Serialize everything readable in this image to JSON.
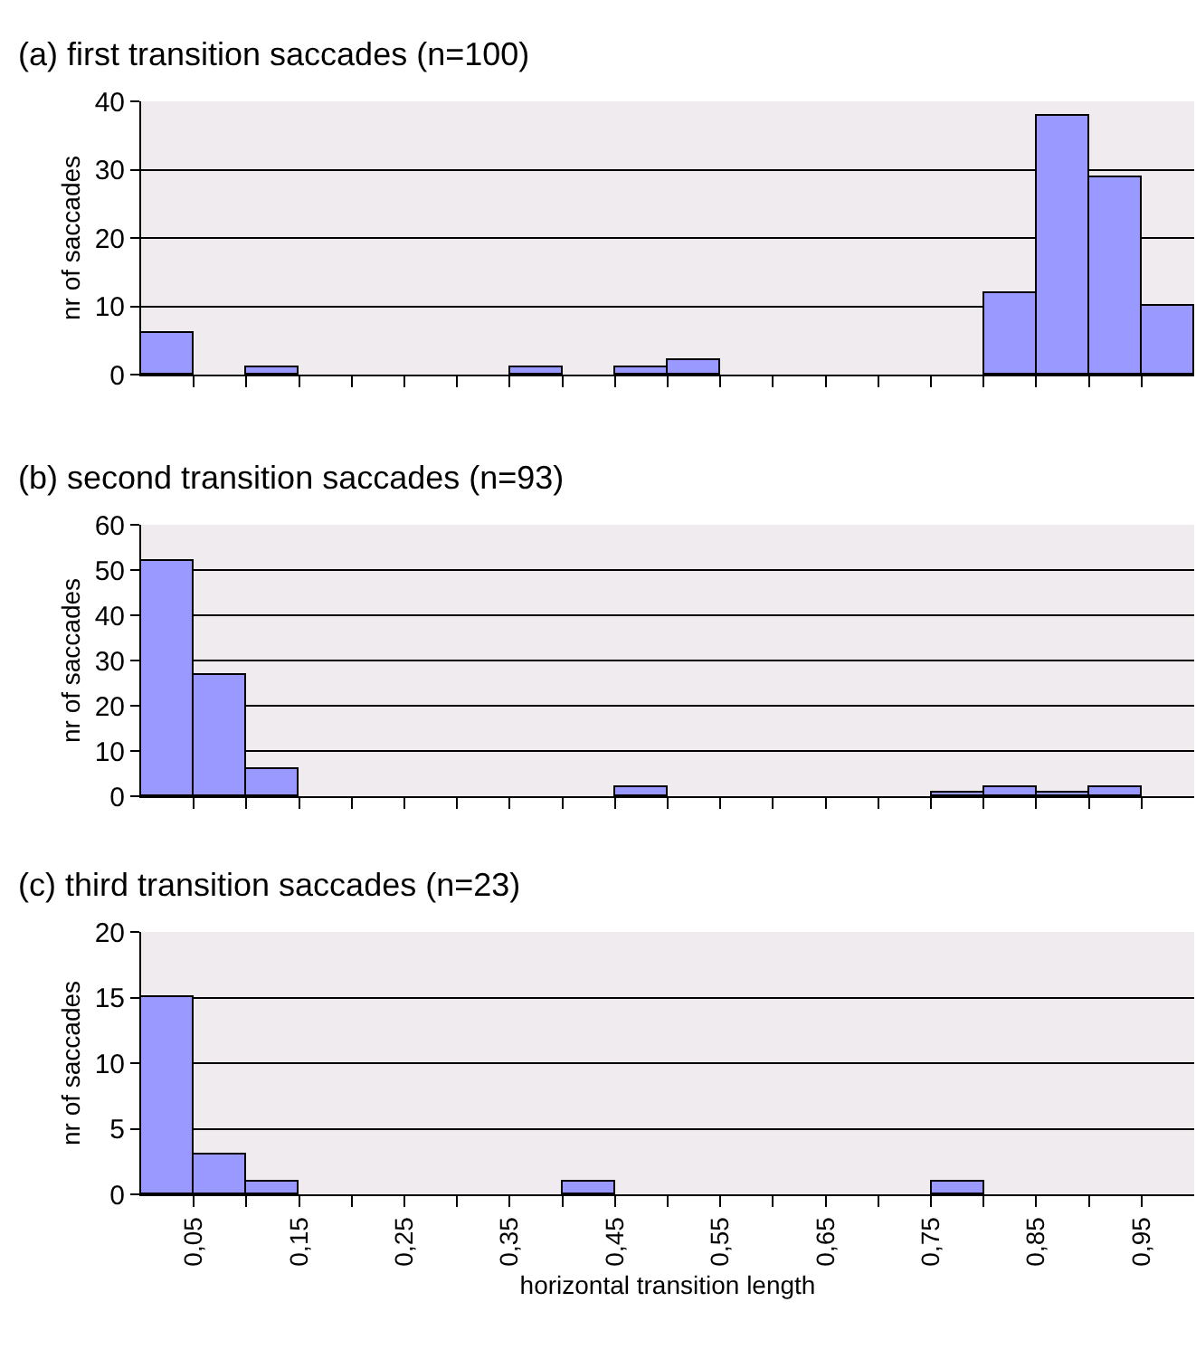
{
  "chart_data": [
    {
      "type": "histogram",
      "title": "(a) first transition saccades (n=100)",
      "ylabel": "nr of saccades",
      "color": "#9999ff",
      "bins": [
        0,
        0.05,
        0.1,
        0.15,
        0.2,
        0.25,
        0.3,
        0.35,
        0.4,
        0.45,
        0.5,
        0.55,
        0.6,
        0.65,
        0.7,
        0.75,
        0.8,
        0.85,
        0.9,
        0.95,
        1
      ],
      "values": [
        6,
        0,
        1,
        0,
        0,
        0,
        0,
        1,
        0,
        1,
        2,
        0,
        0,
        0,
        0,
        0,
        12,
        38,
        29,
        10
      ],
      "xlim": [
        0,
        1
      ],
      "ylim": [
        0,
        40
      ],
      "yticks": [
        0,
        10,
        20,
        30,
        40
      ],
      "xticks": [
        {
          "value": 0.05,
          "label": null
        },
        {
          "value": 0.1,
          "label": null
        },
        {
          "value": 0.15,
          "label": null
        },
        {
          "value": 0.2,
          "label": null
        },
        {
          "value": 0.25,
          "label": null
        },
        {
          "value": 0.3,
          "label": null
        },
        {
          "value": 0.35,
          "label": null
        },
        {
          "value": 0.4,
          "label": null
        },
        {
          "value": 0.45,
          "label": null
        },
        {
          "value": 0.5,
          "label": null
        },
        {
          "value": 0.55,
          "label": null
        },
        {
          "value": 0.6,
          "label": null
        },
        {
          "value": 0.65,
          "label": null
        },
        {
          "value": 0.7,
          "label": null
        },
        {
          "value": 0.75,
          "label": null
        },
        {
          "value": 0.8,
          "label": null
        },
        {
          "value": 0.85,
          "label": null
        },
        {
          "value": 0.9,
          "label": null
        },
        {
          "value": 0.95,
          "label": null
        }
      ],
      "tick_labels": "y",
      "grid": "y"
    },
    {
      "type": "histogram",
      "title": "(b) second transition saccades (n=93)",
      "ylabel": "nr of saccades",
      "color": "#9999ff",
      "bins": [
        0,
        0.05,
        0.1,
        0.15,
        0.2,
        0.25,
        0.3,
        0.35,
        0.4,
        0.45,
        0.5,
        0.55,
        0.6,
        0.65,
        0.7,
        0.75,
        0.8,
        0.85,
        0.9,
        0.95,
        1
      ],
      "values": [
        52,
        27,
        6,
        0,
        0,
        0,
        0,
        0,
        0,
        2,
        0,
        0,
        0,
        0,
        0,
        1,
        2,
        1,
        2,
        0
      ],
      "xlim": [
        0,
        1
      ],
      "ylim": [
        0,
        60
      ],
      "yticks": [
        0,
        10,
        20,
        30,
        40,
        50,
        60
      ],
      "xticks": [
        {
          "value": 0.05,
          "label": null
        },
        {
          "value": 0.1,
          "label": null
        },
        {
          "value": 0.15,
          "label": null
        },
        {
          "value": 0.2,
          "label": null
        },
        {
          "value": 0.25,
          "label": null
        },
        {
          "value": 0.3,
          "label": null
        },
        {
          "value": 0.35,
          "label": null
        },
        {
          "value": 0.4,
          "label": null
        },
        {
          "value": 0.45,
          "label": null
        },
        {
          "value": 0.5,
          "label": null
        },
        {
          "value": 0.55,
          "label": null
        },
        {
          "value": 0.6,
          "label": null
        },
        {
          "value": 0.65,
          "label": null
        },
        {
          "value": 0.7,
          "label": null
        },
        {
          "value": 0.75,
          "label": null
        },
        {
          "value": 0.8,
          "label": null
        },
        {
          "value": 0.85,
          "label": null
        },
        {
          "value": 0.9,
          "label": null
        },
        {
          "value": 0.95,
          "label": null
        }
      ],
      "tick_labels": "y",
      "grid": "y"
    },
    {
      "type": "histogram",
      "title": "(c) third transition saccades (n=23)",
      "ylabel": "nr of saccades",
      "xlabel": "horizontal transition length",
      "color": "#9999ff",
      "bins": [
        0,
        0.05,
        0.1,
        0.15,
        0.2,
        0.25,
        0.3,
        0.35,
        0.4,
        0.45,
        0.5,
        0.55,
        0.6,
        0.65,
        0.7,
        0.75,
        0.8,
        0.85,
        0.9,
        0.95,
        1
      ],
      "values": [
        15,
        3,
        1,
        0,
        0,
        0,
        0,
        0,
        1,
        0,
        0,
        0,
        0,
        0,
        0,
        1,
        0,
        0,
        0,
        0
      ],
      "xlim": [
        0,
        1
      ],
      "ylim": [
        0,
        20
      ],
      "yticks": [
        0,
        5,
        10,
        15,
        20
      ],
      "xticks": [
        {
          "value": 0.05,
          "label": "0,05"
        },
        {
          "value": 0.1,
          "label": null
        },
        {
          "value": 0.15,
          "label": "0,15"
        },
        {
          "value": 0.2,
          "label": null
        },
        {
          "value": 0.25,
          "label": "0,25"
        },
        {
          "value": 0.3,
          "label": null
        },
        {
          "value": 0.35,
          "label": "0,35"
        },
        {
          "value": 0.4,
          "label": null
        },
        {
          "value": 0.45,
          "label": "0,45"
        },
        {
          "value": 0.5,
          "label": null
        },
        {
          "value": 0.55,
          "label": "0,55"
        },
        {
          "value": 0.6,
          "label": null
        },
        {
          "value": 0.65,
          "label": "0,65"
        },
        {
          "value": 0.7,
          "label": null
        },
        {
          "value": 0.75,
          "label": "0,75"
        },
        {
          "value": 0.8,
          "label": null
        },
        {
          "value": 0.85,
          "label": "0,85"
        },
        {
          "value": 0.9,
          "label": null
        },
        {
          "value": 0.95,
          "label": "0,95"
        }
      ],
      "grid": "y"
    }
  ]
}
